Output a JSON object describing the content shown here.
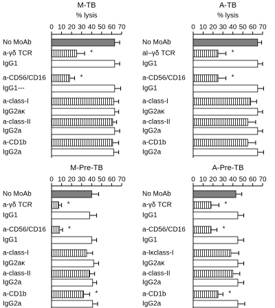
{
  "chart_data": [
    {
      "type": "bar",
      "orientation": "horizontal",
      "title": "M-TB",
      "xlabel": "% lysis",
      "xlim": [
        0,
        70
      ],
      "xticks": [
        0,
        10,
        20,
        30,
        40,
        50,
        60,
        70
      ],
      "categories": [
        "No MoAb",
        "a-γδ TCR",
        "IgG1",
        "a-CD56/CD16",
        "IgG1---",
        "a-class-I",
        "IgG2aκ",
        "a-class-II",
        "IgG2a",
        "a-CD1b",
        "IgG2a"
      ],
      "values": [
        63,
        25,
        63,
        18,
        63,
        62,
        63,
        61,
        63,
        61,
        62
      ],
      "errors": [
        5,
        8,
        5,
        5,
        6,
        5,
        4,
        4,
        5,
        6,
        5
      ],
      "significance": [
        null,
        "*",
        null,
        "*",
        null,
        null,
        null,
        null,
        null,
        null,
        null
      ],
      "bar_styles": [
        "filled",
        "hatched",
        "open",
        "hatched",
        "open",
        "hatched",
        "open",
        "hatched",
        "open",
        "hatched",
        "open"
      ]
    },
    {
      "type": "bar",
      "orientation": "horizontal",
      "title": "A-TB",
      "xlabel": "% lysis",
      "xlim": [
        0,
        70
      ],
      "xticks": [
        0,
        10,
        20,
        30,
        40,
        50,
        60,
        70
      ],
      "categories": [
        "No MoAb",
        "aI–γδ TCR",
        "IgG1",
        "a-CD56/CD16",
        "IgG1",
        "a-class-I",
        "IgG2aκ",
        "a-class-II",
        "IgG2a",
        "a-CD1b",
        "IgG2a"
      ],
      "values": [
        65,
        25,
        65,
        25,
        65,
        58,
        65,
        55,
        65,
        55,
        65
      ],
      "errors": [
        4,
        8,
        5,
        8,
        6,
        6,
        5,
        8,
        5,
        8,
        6
      ],
      "significance": [
        null,
        "*",
        null,
        "*",
        null,
        null,
        null,
        null,
        null,
        null,
        null
      ],
      "bar_styles": [
        "filled",
        "hatched",
        "open",
        "hatched",
        "open",
        "hatched",
        "open",
        "hatched",
        "open",
        "hatched",
        "open"
      ]
    },
    {
      "type": "bar",
      "orientation": "horizontal",
      "title": "M-Pre-TB",
      "xlim": [
        0,
        70
      ],
      "xticks": [
        0,
        10,
        20,
        30,
        40,
        50,
        60,
        70
      ],
      "categories": [
        "No MoAb",
        "a-γδ TCR",
        "IgG1",
        "a-CD56/CD16",
        "IgG1",
        "a-class-I",
        "IgG2aκ",
        "a-class-II",
        "IgG2a",
        "a-CD1b",
        "IgG2a"
      ],
      "values": [
        40,
        7,
        38,
        8,
        40,
        35,
        42,
        38,
        41,
        32,
        41
      ],
      "errors": [
        7,
        3,
        7,
        3,
        5,
        6,
        5,
        5,
        4,
        6,
        5
      ],
      "significance": [
        null,
        "*",
        null,
        "*",
        null,
        null,
        null,
        null,
        null,
        "*",
        null
      ],
      "bar_styles": [
        "filled",
        "hatched",
        "open",
        "hatched",
        "open",
        "hatched",
        "open",
        "hatched",
        "open",
        "hatched",
        "open"
      ]
    },
    {
      "type": "bar",
      "orientation": "horizontal",
      "title": "A-Pre-TB",
      "xlim": [
        0,
        70
      ],
      "xticks": [
        0,
        10,
        20,
        30,
        40,
        50,
        60,
        70
      ],
      "categories": [
        "No MoAb",
        "a-γδ TCR",
        "IgG1",
        "a-CD56/CD16",
        "IgG1",
        "a-Iκclass-I",
        "IgG2aκ",
        "a-class-II",
        "IgG2a",
        "a-CD1b",
        "IgG2a"
      ],
      "values": [
        43,
        18,
        45,
        18,
        45,
        38,
        45,
        40,
        45,
        25,
        45
      ],
      "errors": [
        6,
        8,
        6,
        6,
        6,
        8,
        6,
        7,
        6,
        5,
        7
      ],
      "significance": [
        null,
        "*",
        null,
        "*",
        null,
        null,
        null,
        null,
        null,
        "*",
        null
      ],
      "bar_styles": [
        "filled",
        "hatched",
        "open",
        "hatched",
        "open",
        "hatched",
        "open",
        "hatched",
        "open",
        "hatched",
        "open"
      ]
    }
  ]
}
